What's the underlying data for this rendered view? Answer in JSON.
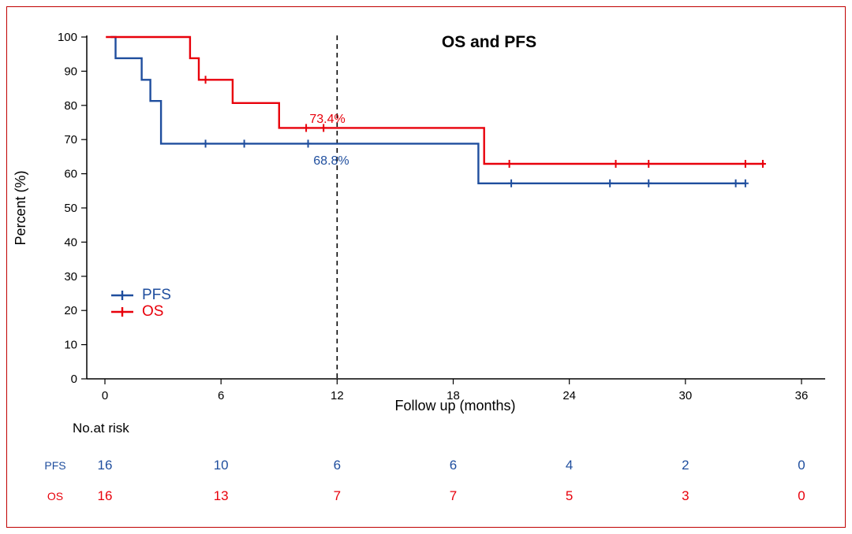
{
  "colors": {
    "pfs_blue": "#1f4e9e",
    "os_red": "#e8000b",
    "frame_border": "#c00000",
    "reference_line": "#000000"
  },
  "chart_data": {
    "type": "line",
    "subtype": "kaplan-meier-step",
    "title": "OS and PFS",
    "xlabel": "Follow up (months)",
    "ylabel": "Percent (%)",
    "xlim": [
      0,
      36
    ],
    "ylim": [
      0,
      100
    ],
    "xticks": [
      0,
      6,
      12,
      18,
      24,
      30,
      36
    ],
    "yticks": [
      0,
      10,
      20,
      30,
      40,
      50,
      60,
      70,
      80,
      90,
      100
    ],
    "grid": false,
    "reference_line_x": 12,
    "legend_position": "inside-lower-left",
    "series": [
      {
        "name": "PFS",
        "color": "#1f4e9e",
        "path": [
          [
            0.3,
            100
          ],
          [
            0.55,
            100
          ],
          [
            0.55,
            93.8
          ],
          [
            1.9,
            93.8
          ],
          [
            1.9,
            87.5
          ],
          [
            2.35,
            87.5
          ],
          [
            2.35,
            81.3
          ],
          [
            2.9,
            81.3
          ],
          [
            2.9,
            68.8
          ],
          [
            19.3,
            68.8
          ],
          [
            19.3,
            57.2
          ],
          [
            33.1,
            57.2
          ]
        ],
        "censors": [
          [
            5.2,
            68.8
          ],
          [
            7.2,
            68.8
          ],
          [
            10.5,
            68.8
          ],
          [
            21.0,
            57.2
          ],
          [
            26.1,
            57.2
          ],
          [
            28.1,
            57.2
          ],
          [
            32.6,
            57.2
          ],
          [
            33.1,
            57.2
          ]
        ],
        "annotation": {
          "text": "68.8%",
          "x": 11.7,
          "y": 63.3
        }
      },
      {
        "name": "OS",
        "color": "#e8000b",
        "path": [
          [
            0.05,
            100
          ],
          [
            4.4,
            100
          ],
          [
            4.4,
            93.8
          ],
          [
            4.85,
            93.8
          ],
          [
            4.85,
            87.5
          ],
          [
            6.6,
            87.5
          ],
          [
            6.6,
            80.7
          ],
          [
            9.0,
            80.7
          ],
          [
            9.0,
            73.4
          ],
          [
            19.6,
            73.4
          ],
          [
            19.6,
            62.9
          ],
          [
            34.1,
            62.9
          ]
        ],
        "censors": [
          [
            5.2,
            87.5
          ],
          [
            10.4,
            73.4
          ],
          [
            11.3,
            73.4
          ],
          [
            20.9,
            62.9
          ],
          [
            26.4,
            62.9
          ],
          [
            28.1,
            62.9
          ],
          [
            33.1,
            62.9
          ],
          [
            34.0,
            62.9
          ]
        ],
        "annotation": {
          "text": "73.4%",
          "x": 11.5,
          "y": 75.5
        }
      }
    ],
    "legend": [
      {
        "label": "PFS",
        "color": "#1f4e9e"
      },
      {
        "label": "OS",
        "color": "#e8000b"
      }
    ],
    "risk_table": {
      "title": "No.at risk",
      "times": [
        0,
        6,
        12,
        18,
        24,
        30,
        36
      ],
      "rows": [
        {
          "label": "PFS",
          "color": "#1f4e9e",
          "values": [
            16,
            10,
            6,
            6,
            4,
            2,
            0
          ]
        },
        {
          "label": "OS",
          "color": "#e8000b",
          "values": [
            16,
            13,
            7,
            7,
            5,
            3,
            0
          ]
        }
      ]
    }
  }
}
